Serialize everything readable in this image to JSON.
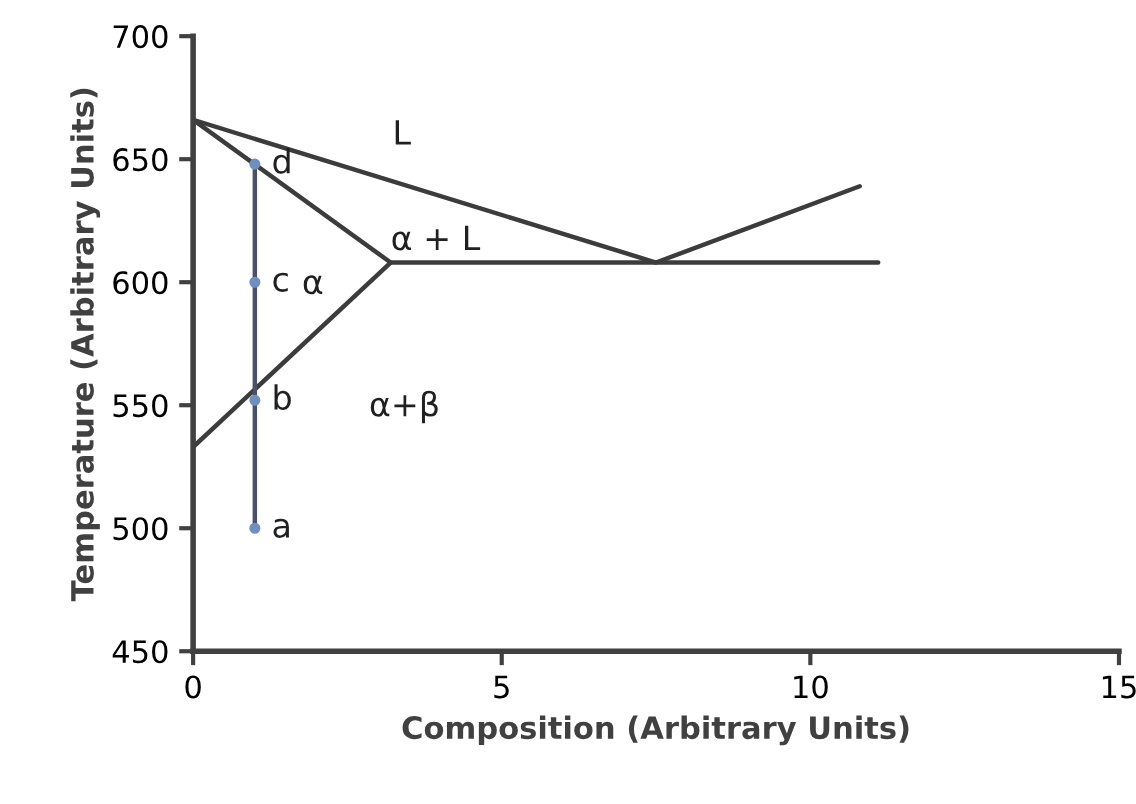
{
  "chart_data": {
    "type": "line",
    "xlabel": "Composition (Arbitrary Units)",
    "ylabel": "Temperature (Arbitrary Units)",
    "xlim": [
      0,
      15
    ],
    "xticks": [
      0,
      5,
      10,
      15
    ],
    "ylim": [
      450,
      700
    ],
    "yticks": [
      450,
      500,
      550,
      600,
      650,
      700
    ],
    "grid": false,
    "series": [
      {
        "color": "#3c3c3c",
        "x": [
          0,
          7.5,
          10.8
        ],
        "values": [
          666,
          608,
          639
        ],
        "marker": "none"
      },
      {
        "color": "#3c3c3c",
        "x": [
          0,
          3.2,
          11.1
        ],
        "values": [
          666,
          608,
          608
        ],
        "marker": "none"
      },
      {
        "color": "#3c3c3c",
        "x": [
          0,
          3.2
        ],
        "values": [
          533,
          608
        ],
        "marker": "none"
      },
      {
        "color": "#4a5068",
        "x": [
          1,
          1,
          1,
          1
        ],
        "values": [
          500,
          552,
          600,
          648
        ],
        "marker": "circle"
      }
    ],
    "annotations": [
      "a",
      "b",
      "c",
      "d",
      "L",
      "α + L",
      "α",
      "α+β"
    ]
  }
}
